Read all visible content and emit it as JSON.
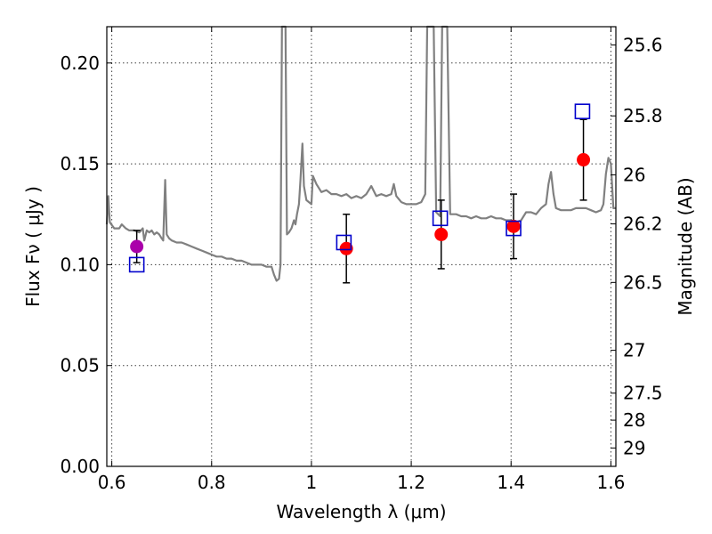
{
  "chart_data": {
    "type": "scatter",
    "title": "",
    "xlabel": "Wavelength  λ (μm)",
    "ylabel": "Flux  Fν  ( μJy )",
    "ylabel_right": "Magnitude (AB)",
    "xlim": [
      0.59,
      1.61
    ],
    "ylim": [
      0.0,
      0.218
    ],
    "grid": true,
    "x_ticks": [
      {
        "value": 0.6,
        "label": "0.6"
      },
      {
        "value": 0.8,
        "label": "0.8"
      },
      {
        "value": 1.0,
        "label": "1"
      },
      {
        "value": 1.2,
        "label": "1.2"
      },
      {
        "value": 1.4,
        "label": "1.4"
      },
      {
        "value": 1.6,
        "label": "1.6"
      }
    ],
    "y_ticks": [
      {
        "value": 0.0,
        "label": "0.00"
      },
      {
        "value": 0.05,
        "label": "0.05"
      },
      {
        "value": 0.1,
        "label": "0.10"
      },
      {
        "value": 0.15,
        "label": "0.15"
      },
      {
        "value": 0.2,
        "label": "0.20"
      }
    ],
    "right_ticks": [
      {
        "value": 25.6,
        "label": "25.6"
      },
      {
        "value": 25.8,
        "label": "25.8"
      },
      {
        "value": 26.0,
        "label": "26"
      },
      {
        "value": 26.2,
        "label": "26.2"
      },
      {
        "value": 26.5,
        "label": "26.5"
      },
      {
        "value": 27.0,
        "label": "27"
      },
      {
        "value": 27.5,
        "label": "27.5"
      },
      {
        "value": 28.0,
        "label": "28"
      },
      {
        "value": 29.0,
        "label": "29"
      }
    ],
    "series": [
      {
        "marker": "circle",
        "points": [
          {
            "x": 0.65,
            "y": 0.109,
            "yerr": 0.008,
            "color": "#aa00aa"
          },
          {
            "x": 1.07,
            "y": 0.108,
            "yerr": 0.017,
            "color": "#ff0000"
          },
          {
            "x": 1.26,
            "y": 0.115,
            "yerr": 0.017,
            "color": "#ff0000"
          },
          {
            "x": 1.405,
            "y": 0.119,
            "yerr": 0.016,
            "color": "#ff0000"
          },
          {
            "x": 1.545,
            "y": 0.152,
            "yerr": 0.02,
            "color": "#ff0000"
          }
        ]
      },
      {
        "marker": "square",
        "color": "#0000cc",
        "points": [
          {
            "x": 0.65,
            "y": 0.1
          },
          {
            "x": 1.065,
            "y": 0.111
          },
          {
            "x": 1.258,
            "y": 0.123
          },
          {
            "x": 1.405,
            "y": 0.118
          },
          {
            "x": 1.543,
            "y": 0.176
          }
        ]
      },
      {
        "marker": "line",
        "color": "#808080",
        "points": [
          [
            0.59,
            0.12
          ],
          [
            0.593,
            0.134
          ],
          [
            0.596,
            0.121
          ],
          [
            0.605,
            0.118
          ],
          [
            0.615,
            0.118
          ],
          [
            0.62,
            0.12
          ],
          [
            0.628,
            0.118
          ],
          [
            0.635,
            0.117
          ],
          [
            0.645,
            0.117
          ],
          [
            0.655,
            0.116
          ],
          [
            0.662,
            0.118
          ],
          [
            0.665,
            0.112
          ],
          [
            0.67,
            0.117
          ],
          [
            0.675,
            0.116
          ],
          [
            0.68,
            0.117
          ],
          [
            0.685,
            0.115
          ],
          [
            0.69,
            0.116
          ],
          [
            0.695,
            0.115
          ],
          [
            0.7,
            0.113
          ],
          [
            0.703,
            0.112
          ],
          [
            0.707,
            0.142
          ],
          [
            0.71,
            0.115
          ],
          [
            0.715,
            0.113
          ],
          [
            0.72,
            0.112
          ],
          [
            0.73,
            0.111
          ],
          [
            0.74,
            0.111
          ],
          [
            0.75,
            0.11
          ],
          [
            0.76,
            0.109
          ],
          [
            0.77,
            0.108
          ],
          [
            0.78,
            0.107
          ],
          [
            0.79,
            0.106
          ],
          [
            0.8,
            0.105
          ],
          [
            0.81,
            0.104
          ],
          [
            0.82,
            0.104
          ],
          [
            0.83,
            0.103
          ],
          [
            0.84,
            0.103
          ],
          [
            0.85,
            0.102
          ],
          [
            0.86,
            0.102
          ],
          [
            0.87,
            0.101
          ],
          [
            0.88,
            0.1
          ],
          [
            0.89,
            0.1
          ],
          [
            0.9,
            0.1
          ],
          [
            0.91,
            0.099
          ],
          [
            0.92,
            0.099
          ],
          [
            0.925,
            0.095
          ],
          [
            0.93,
            0.092
          ],
          [
            0.935,
            0.093
          ],
          [
            0.938,
            0.1
          ],
          [
            0.941,
            0.218
          ],
          [
            0.948,
            0.218
          ],
          [
            0.951,
            0.115
          ],
          [
            0.955,
            0.116
          ],
          [
            0.96,
            0.118
          ],
          [
            0.965,
            0.122
          ],
          [
            0.968,
            0.12
          ],
          [
            0.971,
            0.125
          ],
          [
            0.975,
            0.13
          ],
          [
            0.978,
            0.142
          ],
          [
            0.982,
            0.16
          ],
          [
            0.985,
            0.139
          ],
          [
            0.99,
            0.132
          ],
          [
            0.995,
            0.131
          ],
          [
            1.0,
            0.13
          ],
          [
            1.003,
            0.144
          ],
          [
            1.01,
            0.14
          ],
          [
            1.02,
            0.136
          ],
          [
            1.03,
            0.137
          ],
          [
            1.04,
            0.135
          ],
          [
            1.05,
            0.135
          ],
          [
            1.06,
            0.134
          ],
          [
            1.07,
            0.135
          ],
          [
            1.08,
            0.133
          ],
          [
            1.09,
            0.134
          ],
          [
            1.1,
            0.133
          ],
          [
            1.11,
            0.135
          ],
          [
            1.12,
            0.139
          ],
          [
            1.13,
            0.134
          ],
          [
            1.14,
            0.135
          ],
          [
            1.15,
            0.134
          ],
          [
            1.16,
            0.135
          ],
          [
            1.165,
            0.14
          ],
          [
            1.17,
            0.134
          ],
          [
            1.18,
            0.131
          ],
          [
            1.19,
            0.13
          ],
          [
            1.2,
            0.13
          ],
          [
            1.21,
            0.13
          ],
          [
            1.22,
            0.131
          ],
          [
            1.228,
            0.135
          ],
          [
            1.232,
            0.218
          ],
          [
            1.245,
            0.218
          ],
          [
            1.25,
            0.126
          ],
          [
            1.258,
            0.124
          ],
          [
            1.262,
            0.218
          ],
          [
            1.272,
            0.218
          ],
          [
            1.278,
            0.125
          ],
          [
            1.29,
            0.125
          ],
          [
            1.3,
            0.124
          ],
          [
            1.31,
            0.124
          ],
          [
            1.32,
            0.123
          ],
          [
            1.33,
            0.124
          ],
          [
            1.34,
            0.123
          ],
          [
            1.35,
            0.123
          ],
          [
            1.36,
            0.124
          ],
          [
            1.37,
            0.123
          ],
          [
            1.38,
            0.123
          ],
          [
            1.39,
            0.122
          ],
          [
            1.4,
            0.122
          ],
          [
            1.41,
            0.121
          ],
          [
            1.42,
            0.122
          ],
          [
            1.43,
            0.126
          ],
          [
            1.44,
            0.126
          ],
          [
            1.45,
            0.125
          ],
          [
            1.46,
            0.128
          ],
          [
            1.47,
            0.13
          ],
          [
            1.475,
            0.14
          ],
          [
            1.48,
            0.146
          ],
          [
            1.485,
            0.135
          ],
          [
            1.49,
            0.128
          ],
          [
            1.5,
            0.127
          ],
          [
            1.51,
            0.127
          ],
          [
            1.52,
            0.127
          ],
          [
            1.53,
            0.128
          ],
          [
            1.54,
            0.128
          ],
          [
            1.55,
            0.128
          ],
          [
            1.56,
            0.127
          ],
          [
            1.57,
            0.126
          ],
          [
            1.58,
            0.127
          ],
          [
            1.585,
            0.13
          ],
          [
            1.59,
            0.145
          ],
          [
            1.595,
            0.153
          ],
          [
            1.6,
            0.15
          ],
          [
            1.605,
            0.128
          ],
          [
            1.61,
            0.128
          ]
        ]
      }
    ]
  }
}
